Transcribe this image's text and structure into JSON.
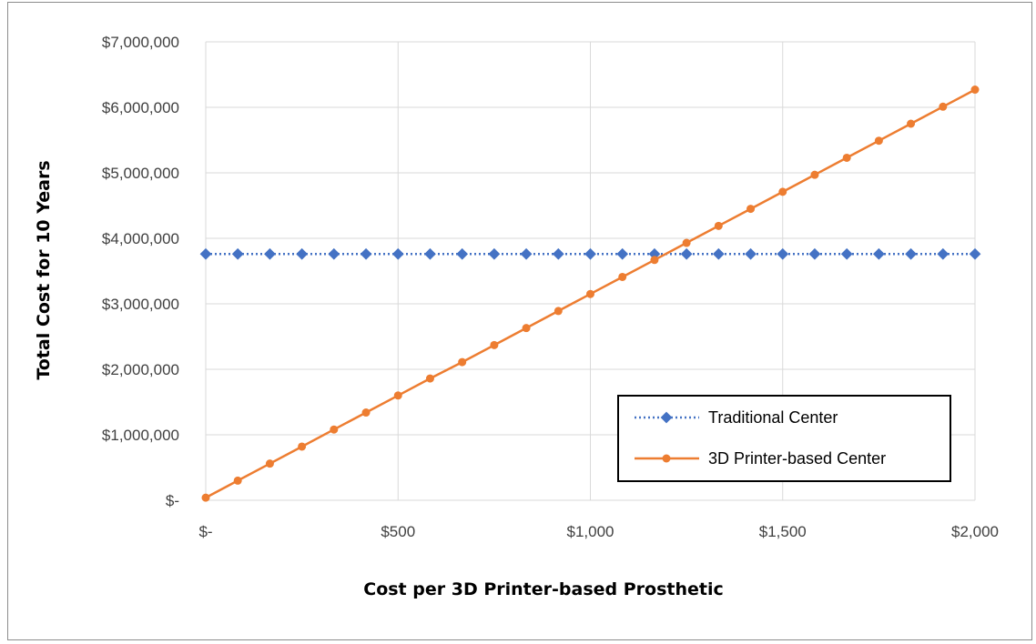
{
  "chart_data": {
    "type": "line",
    "xlabel": "Cost per 3D Printer-based Prosthetic",
    "ylabel": "Total Cost for 10 Years",
    "xlim": [
      0,
      2000
    ],
    "ylim": [
      0,
      7000000
    ],
    "x_ticks": [
      {
        "value": 0,
        "label": "$-"
      },
      {
        "value": 500,
        "label": "$500"
      },
      {
        "value": 1000,
        "label": "$1,000"
      },
      {
        "value": 1500,
        "label": "$1,500"
      },
      {
        "value": 2000,
        "label": "$2,000"
      }
    ],
    "y_ticks": [
      {
        "value": 0,
        "label": "$-"
      },
      {
        "value": 1000000,
        "label": "$1,000,000"
      },
      {
        "value": 2000000,
        "label": "$2,000,000"
      },
      {
        "value": 3000000,
        "label": "$3,000,000"
      },
      {
        "value": 4000000,
        "label": "$4,000,000"
      },
      {
        "value": 5000000,
        "label": "$5,000,000"
      },
      {
        "value": 6000000,
        "label": "$6,000,000"
      },
      {
        "value": 7000000,
        "label": "$7,000,000"
      }
    ],
    "grid": true,
    "legend_position": "bottom-right",
    "x": [
      0,
      83.3,
      166.7,
      250,
      333.3,
      416.7,
      500,
      583.3,
      666.7,
      750,
      833.3,
      916.7,
      1000,
      1083.3,
      1166.7,
      1250,
      1333.3,
      1416.7,
      1500,
      1583.3,
      1666.7,
      1750,
      1833.3,
      1916.7,
      2000
    ],
    "series": [
      {
        "name": "Traditional Center",
        "color": "#4472C4",
        "line_style": "dotted",
        "marker": "diamond",
        "values": [
          3760000,
          3760000,
          3760000,
          3760000,
          3760000,
          3760000,
          3760000,
          3760000,
          3760000,
          3760000,
          3760000,
          3760000,
          3760000,
          3760000,
          3760000,
          3760000,
          3760000,
          3760000,
          3760000,
          3760000,
          3760000,
          3760000,
          3760000,
          3760000,
          3760000
        ]
      },
      {
        "name": "3D Printer-based Center",
        "color": "#ED7D31",
        "line_style": "solid",
        "marker": "circle",
        "values": [
          40000,
          300000,
          560000,
          820000,
          1080000,
          1340000,
          1600000,
          1860000,
          2110000,
          2370000,
          2630000,
          2890000,
          3150000,
          3410000,
          3670000,
          3930000,
          4190000,
          4450000,
          4710000,
          4970000,
          5230000,
          5490000,
          5750000,
          6010000,
          6270000
        ]
      }
    ]
  }
}
